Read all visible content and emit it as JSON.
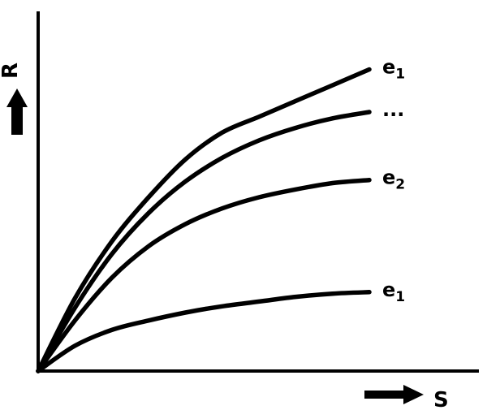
{
  "chart_data": {
    "type": "line",
    "title": "",
    "xlabel": "S",
    "ylabel": "R",
    "xlim": [
      0,
      10
    ],
    "ylim": [
      0,
      10
    ],
    "grid": false,
    "series": [
      {
        "name": "e1",
        "label_main": "e",
        "label_sub": "1",
        "x": [
          0,
          1,
          2,
          3,
          4,
          5,
          6,
          7,
          8,
          9
        ],
        "y": [
          0,
          2.3,
          4.1,
          5.5,
          6.7,
          7.55,
          8.05,
          8.55,
          9.05,
          9.55
        ]
      },
      {
        "name": "...",
        "label_main": "...",
        "label_sub": "",
        "x": [
          0,
          1,
          2,
          3,
          4,
          5,
          6,
          7,
          8,
          9
        ],
        "y": [
          0,
          2.0,
          3.7,
          5.0,
          6.0,
          6.75,
          7.3,
          7.7,
          8.0,
          8.2
        ]
      },
      {
        "name": "e2",
        "label_main": "e",
        "label_sub": "2",
        "x": [
          0,
          1,
          2,
          3,
          4,
          5,
          6,
          7,
          8,
          9
        ],
        "y": [
          0,
          1.6,
          2.95,
          3.95,
          4.65,
          5.15,
          5.5,
          5.75,
          5.95,
          6.05
        ]
      },
      {
        "name": "e1",
        "label_main": "e",
        "label_sub": "1",
        "x": [
          0,
          1,
          2,
          3,
          4,
          5,
          6,
          7,
          8,
          9
        ],
        "y": [
          0,
          0.8,
          1.3,
          1.6,
          1.85,
          2.05,
          2.2,
          2.35,
          2.45,
          2.5
        ]
      }
    ]
  }
}
